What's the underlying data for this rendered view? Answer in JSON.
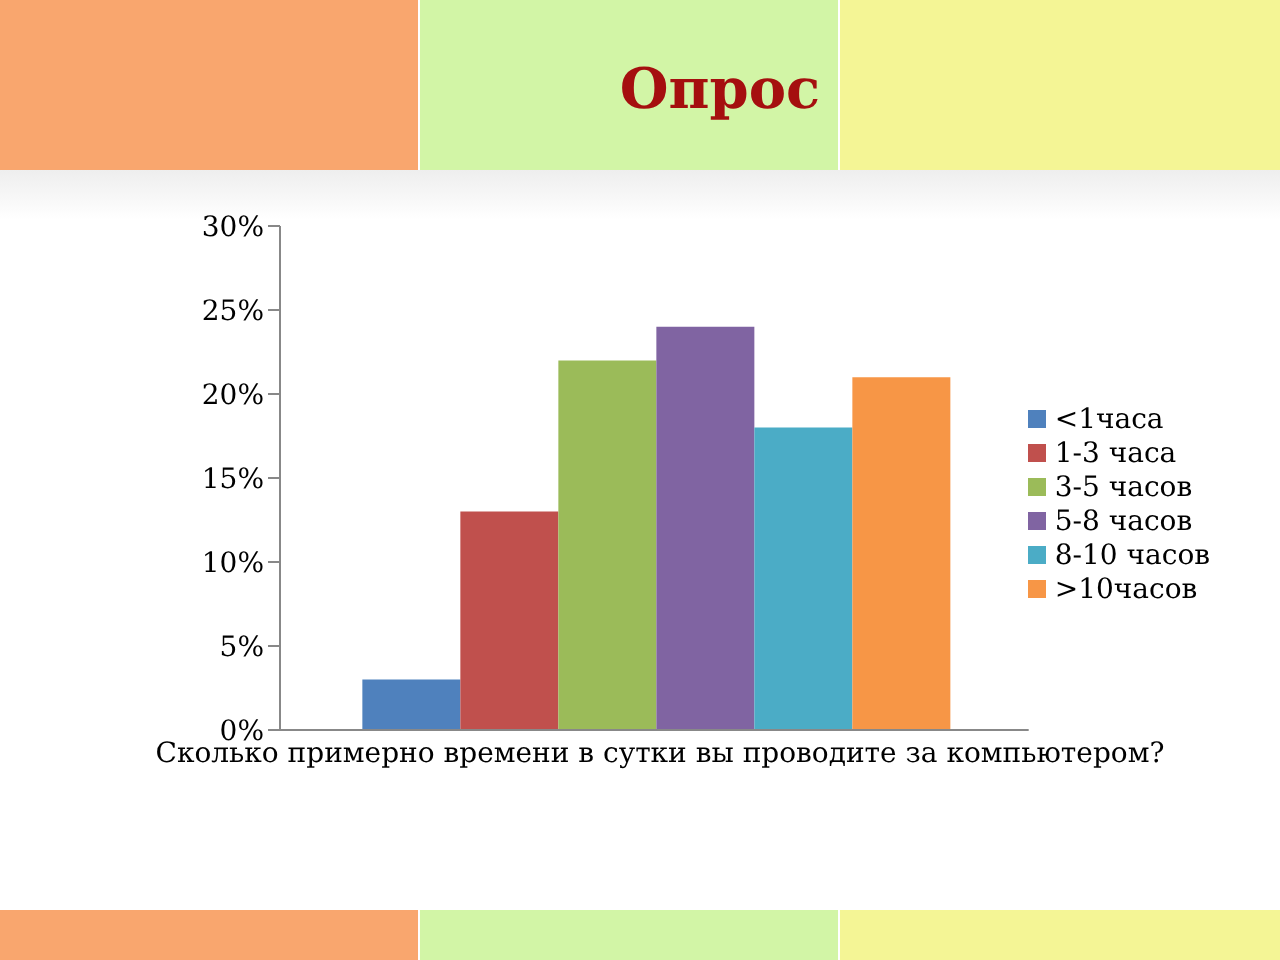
{
  "chart_data": {
    "type": "bar",
    "title": "Опрос",
    "xlabel": "Сколько примерно времени в сутки вы проводите за компьютером?",
    "categories": [
      null
    ],
    "series": [
      {
        "name": "<1часа",
        "color": "#4f81bd",
        "values": [
          3
        ]
      },
      {
        "name": "1-3 часа",
        "color": "#c0504d",
        "values": [
          13
        ]
      },
      {
        "name": "3-5 часов",
        "color": "#9bbb59",
        "values": [
          22
        ]
      },
      {
        "name": "5-8 часов",
        "color": "#8064a2",
        "values": [
          24
        ]
      },
      {
        "name": "8-10 часов",
        "color": "#4bacc6",
        "values": [
          18
        ]
      },
      {
        "name": ">10часов",
        "color": "#f79646",
        "values": [
          21
        ]
      }
    ],
    "ylim": [
      0,
      30
    ],
    "yticks": [
      {
        "value": 0,
        "label": "0%"
      },
      {
        "value": 5,
        "label": "5%"
      },
      {
        "value": 10,
        "label": "10%"
      },
      {
        "value": 15,
        "label": "15%"
      },
      {
        "value": 20,
        "label": "20%"
      },
      {
        "value": 25,
        "label": "25%"
      },
      {
        "value": 30,
        "label": "30%"
      }
    ],
    "grid": false,
    "legend": "right"
  }
}
